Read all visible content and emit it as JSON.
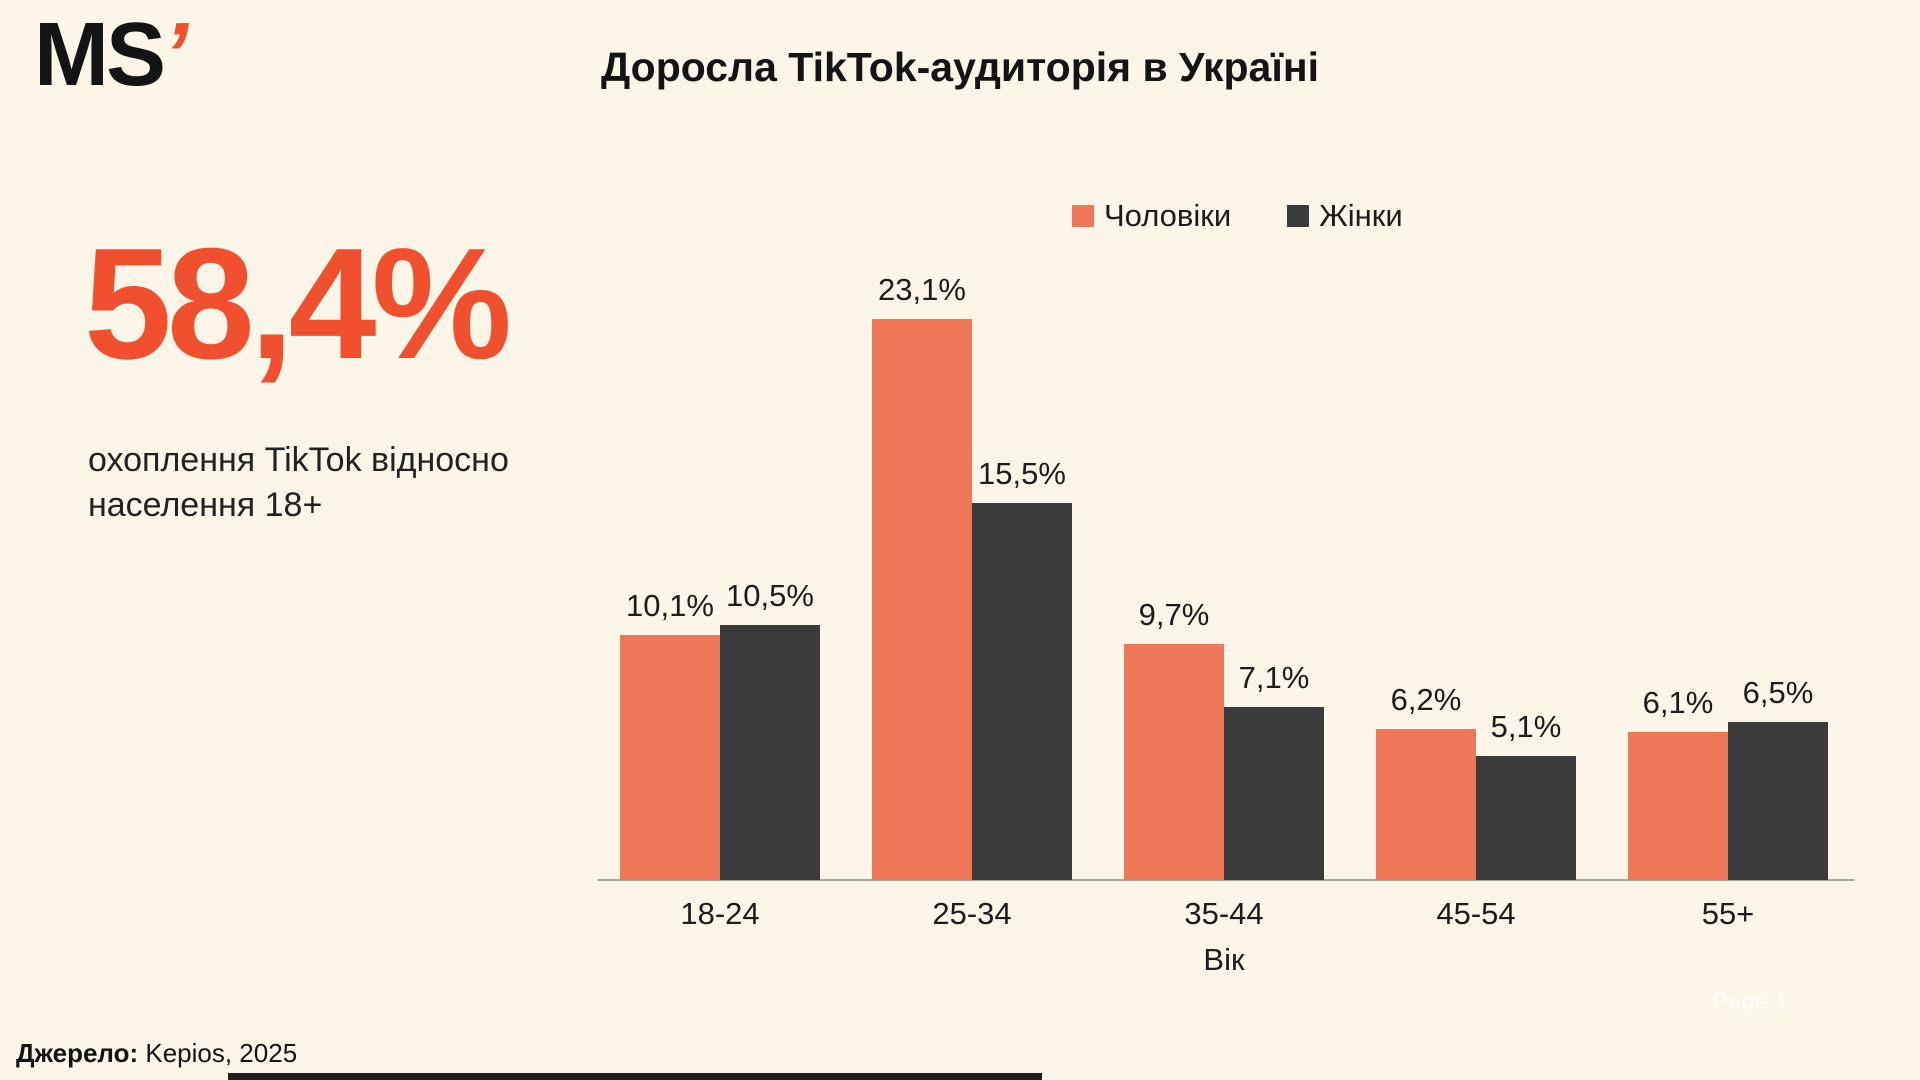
{
  "page": {
    "background_color": "#FBF6E7",
    "accent_color": "#F0502D",
    "men_bar_color": "#EF7859",
    "women_bar_color": "#3B3B3B"
  },
  "logo": {
    "text": "MS",
    "apostrophe": "’"
  },
  "header": {
    "title": "Доросла TikTok-аудиторія в Україні"
  },
  "stat": {
    "value": "58,4%",
    "description": "охоплення TikTok відносно населення 18+"
  },
  "chart_data": {
    "type": "bar",
    "title": "Доросла TikTok-аудиторія в Україні",
    "categories": [
      "18-24",
      "25-34",
      "35-44",
      "45-54",
      "55+"
    ],
    "series": [
      {
        "name": "Чоловіки",
        "color": "#EF7859",
        "values": [
          10.1,
          23.1,
          9.7,
          6.2,
          6.1
        ]
      },
      {
        "name": "Жінки",
        "color": "#3B3B3B",
        "values": [
          10.5,
          15.5,
          7.1,
          5.1,
          6.5
        ]
      }
    ],
    "xlabel": "Вік",
    "ylabel": "",
    "ylim": [
      0,
      25
    ],
    "value_suffix": "%",
    "decimal_separator": ",",
    "grid": false,
    "legend_position": "top",
    "data_labels": true
  },
  "footer": {
    "source_label": "Джерело:",
    "source_value": " Kepios, 2025",
    "page_label": "Page 1"
  }
}
